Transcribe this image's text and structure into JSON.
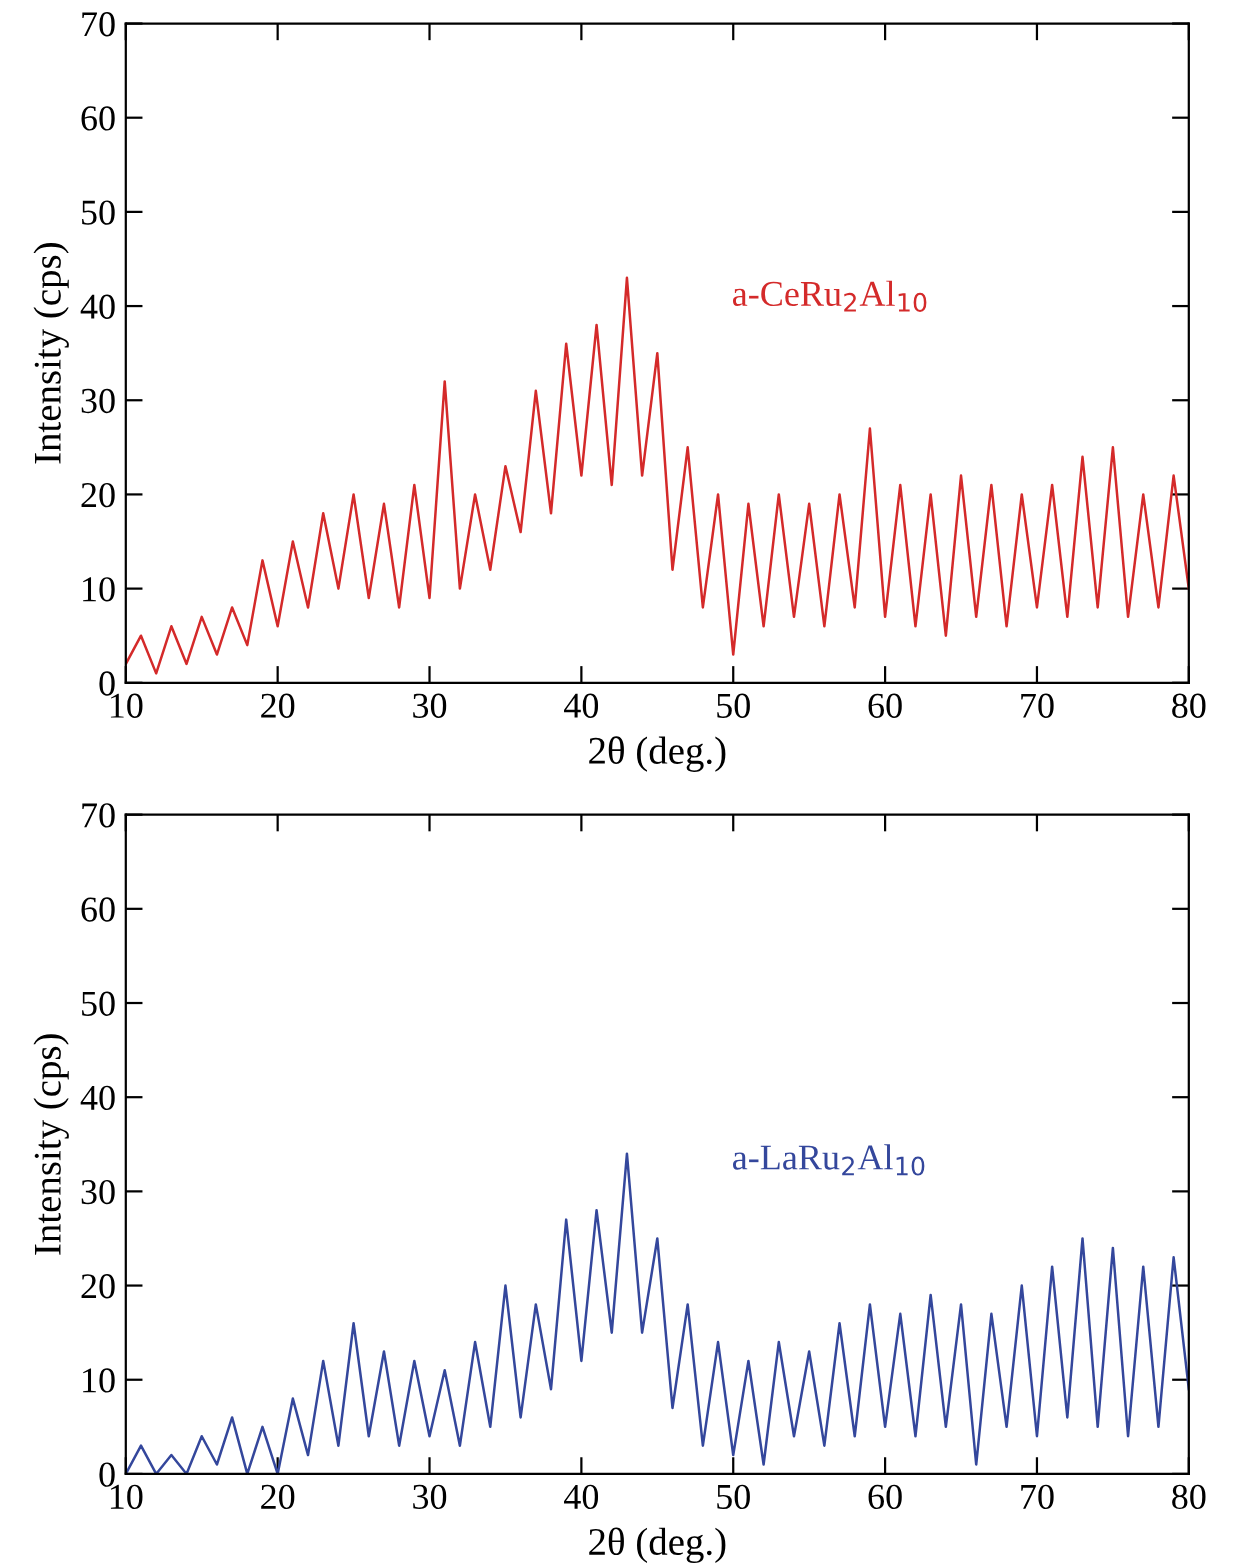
{
  "chart_data": [
    {
      "type": "line",
      "xlabel": "2θ (deg.)",
      "ylabel": "Intensity (cps)",
      "xlim": [
        10,
        80
      ],
      "ylim": [
        0,
        70
      ],
      "xticks": [
        10,
        20,
        30,
        40,
        50,
        60,
        70,
        80
      ],
      "yticks": [
        0,
        10,
        20,
        30,
        40,
        50,
        60,
        70
      ],
      "grid": false,
      "legend": false,
      "series": [
        {
          "name": "a-CeRu$_{2}$Al$_{10}$",
          "color": "#d42a2a",
          "x": [
            10,
            11,
            12,
            13,
            14,
            15,
            16,
            17,
            18,
            19,
            20,
            21,
            22,
            23,
            24,
            25,
            26,
            27,
            28,
            29,
            30,
            31,
            32,
            33,
            34,
            35,
            36,
            37,
            38,
            39,
            40,
            41,
            42,
            43,
            44,
            45,
            46,
            47,
            48,
            49,
            50,
            51,
            52,
            53,
            54,
            55,
            56,
            57,
            58,
            59,
            60,
            61,
            62,
            63,
            64,
            65,
            66,
            67,
            68,
            69,
            70,
            71,
            72,
            73,
            74,
            75,
            76,
            77,
            78,
            79,
            80
          ],
          "values": [
            2,
            5,
            1,
            6,
            2,
            7,
            3,
            8,
            4,
            13,
            6,
            15,
            8,
            18,
            10,
            20,
            9,
            19,
            8,
            21,
            9,
            32,
            10,
            20,
            12,
            23,
            16,
            31,
            18,
            36,
            22,
            38,
            21,
            43,
            22,
            35,
            12,
            25,
            8,
            20,
            3,
            19,
            6,
            20,
            7,
            19,
            6,
            20,
            8,
            27,
            7,
            21,
            6,
            20,
            5,
            22,
            7,
            21,
            6,
            20,
            8,
            21,
            7,
            24,
            8,
            25,
            7,
            20,
            8,
            22,
            10
          ]
        }
      ]
    },
    {
      "type": "line",
      "xlabel": "2θ (deg.)",
      "ylabel": "Intensity (cps)",
      "xlim": [
        10,
        80
      ],
      "ylim": [
        0,
        70
      ],
      "xticks": [
        10,
        20,
        30,
        40,
        50,
        60,
        70,
        80
      ],
      "yticks": [
        0,
        10,
        20,
        30,
        40,
        50,
        60,
        70
      ],
      "grid": false,
      "legend": false,
      "series": [
        {
          "name": "a-LaRu$_{2}$Al$_{10}$",
          "color": "#34479c",
          "x": [
            10,
            11,
            12,
            13,
            14,
            15,
            16,
            17,
            18,
            19,
            20,
            21,
            22,
            23,
            24,
            25,
            26,
            27,
            28,
            29,
            30,
            31,
            32,
            33,
            34,
            35,
            36,
            37,
            38,
            39,
            40,
            41,
            42,
            43,
            44,
            45,
            46,
            47,
            48,
            49,
            50,
            51,
            52,
            53,
            54,
            55,
            56,
            57,
            58,
            59,
            60,
            61,
            62,
            63,
            64,
            65,
            66,
            67,
            68,
            69,
            70,
            71,
            72,
            73,
            74,
            75,
            76,
            77,
            78,
            79,
            80
          ],
          "values": [
            0,
            3,
            0,
            2,
            0,
            4,
            1,
            6,
            0,
            5,
            0,
            8,
            2,
            12,
            3,
            16,
            4,
            13,
            3,
            12,
            4,
            11,
            3,
            14,
            5,
            20,
            6,
            18,
            9,
            27,
            12,
            28,
            15,
            34,
            15,
            25,
            7,
            18,
            3,
            14,
            2,
            12,
            1,
            14,
            4,
            13,
            3,
            16,
            4,
            18,
            5,
            17,
            4,
            19,
            5,
            18,
            1,
            17,
            5,
            20,
            4,
            22,
            6,
            25,
            5,
            24,
            4,
            22,
            5,
            23,
            9
          ]
        }
      ]
    }
  ]
}
